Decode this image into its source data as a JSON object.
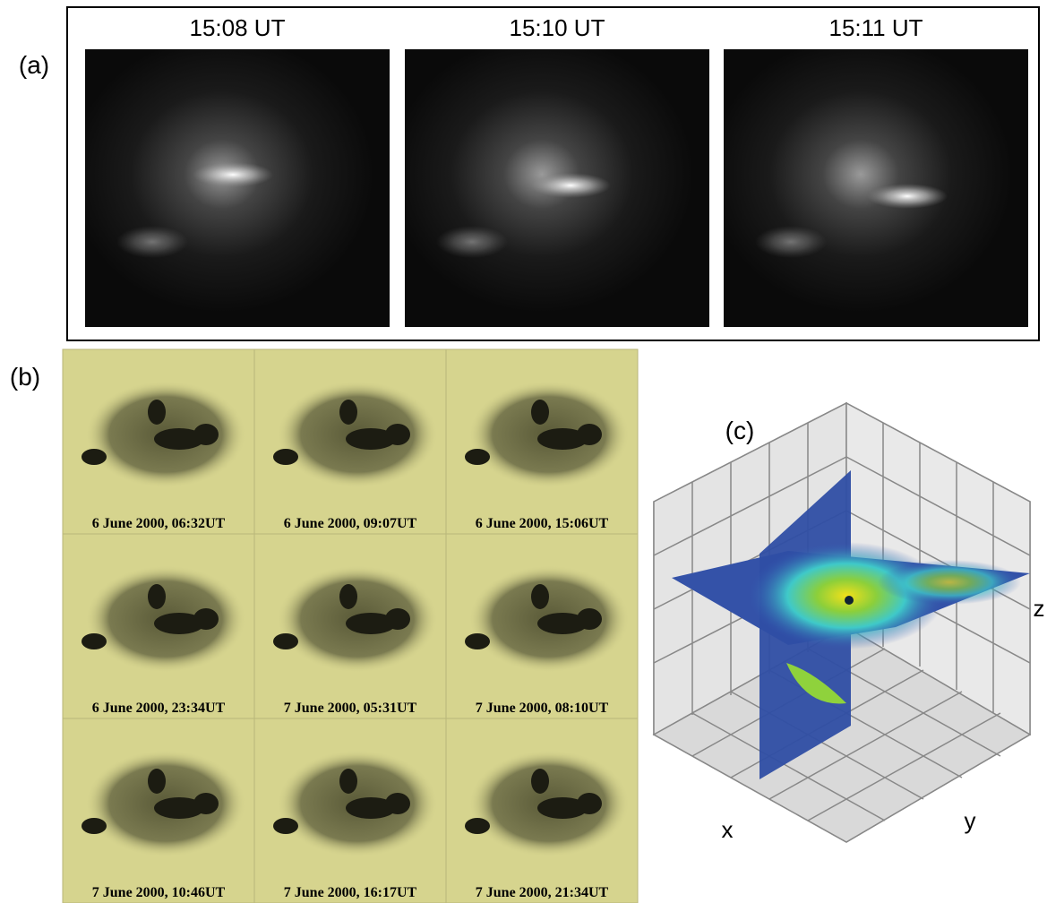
{
  "panel_a": {
    "label": "(a)",
    "frames": [
      "15:08 UT",
      "15:10 UT",
      "15:11 UT"
    ]
  },
  "panel_b": {
    "label": "(b)",
    "frames": [
      "6 June 2000, 06:32UT",
      "6 June 2000, 09:07UT",
      "6 June 2000, 15:06UT",
      "6 June 2000, 23:34UT",
      "7 June 2000, 05:31UT",
      "7 June 2000, 08:10UT",
      "7 June 2000, 10:46UT",
      "7 June 2000, 16:17UT",
      "7 June 2000, 21:34UT"
    ]
  },
  "panel_c": {
    "label": "(c)",
    "axes": [
      "x",
      "y",
      "z"
    ]
  }
}
